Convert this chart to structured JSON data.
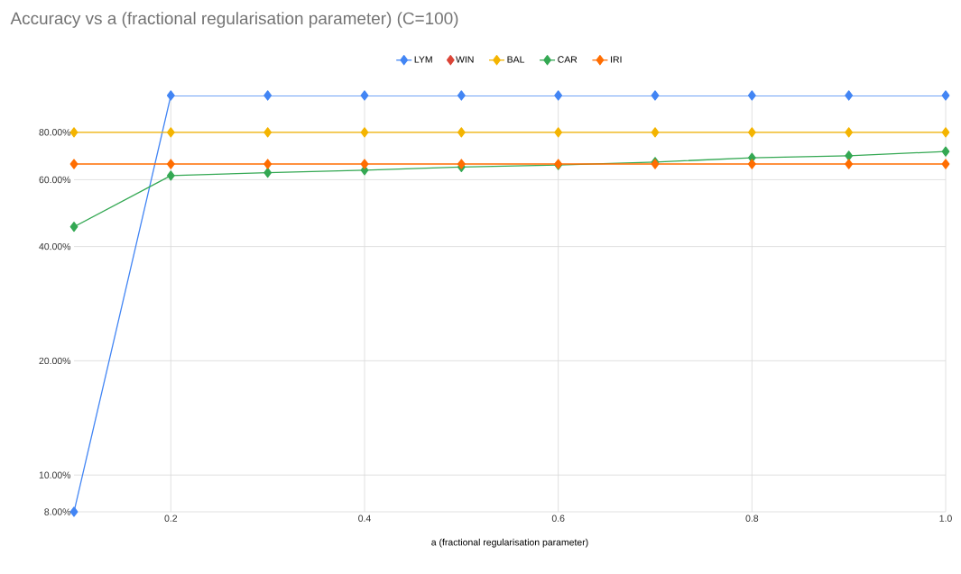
{
  "chart_data": {
    "type": "line",
    "title": "Accuracy vs a (fractional regularisation parameter) (C=100)",
    "xlabel": "a (fractional regularisation parameter)",
    "x": [
      0.1,
      0.2,
      0.3,
      0.4,
      0.5,
      0.6,
      0.7,
      0.8,
      0.9,
      1.0
    ],
    "series": [
      {
        "name": "LYM",
        "color": "#4285f4",
        "values": [
          8,
          100,
          100,
          100,
          100,
          100,
          100,
          100,
          100,
          100
        ]
      },
      {
        "name": "WIN",
        "color": "#db4437",
        "values": [
          null,
          null,
          null,
          null,
          null,
          null,
          null,
          null,
          null,
          null
        ]
      },
      {
        "name": "BAL",
        "color": "#f4b400",
        "values": [
          80,
          80,
          80,
          80,
          80,
          80,
          80,
          80,
          80,
          80
        ]
      },
      {
        "name": "CAR",
        "color": "#34a853",
        "values": [
          45.1,
          61.5,
          62.6,
          63.6,
          64.8,
          65.6,
          66.8,
          68.5,
          69.4,
          71.2
        ]
      },
      {
        "name": "IRI",
        "color": "#ff6d01",
        "values": [
          66,
          66,
          66,
          66,
          66,
          66,
          66,
          66,
          66,
          66
        ]
      }
    ],
    "xlim": [
      0.1,
      1.0
    ],
    "ylim": [
      8,
      100
    ],
    "xticks": [
      0.2,
      0.4,
      0.6,
      0.8,
      {
        "value": 1.0,
        "label": "1.0"
      }
    ],
    "yticks": [
      {
        "value": 8,
        "label": "8.00%"
      },
      {
        "value": 10,
        "label": "10.00%"
      },
      {
        "value": 20,
        "label": "20.00%"
      },
      {
        "value": 40,
        "label": "40.00%"
      },
      {
        "value": 60,
        "label": "60.00%"
      },
      {
        "value": 80,
        "label": "80.00%"
      }
    ],
    "log": "y",
    "grid": true,
    "legend": "top",
    "marker": "diamond",
    "line_style": "solid"
  }
}
